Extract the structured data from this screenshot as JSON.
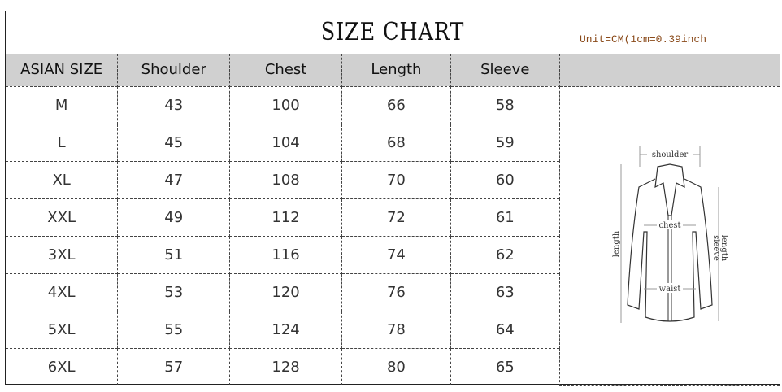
{
  "title": "SIZE CHART",
  "unit": "Unit=CM(1cm=0.39inch",
  "columns": [
    "ASIAN SIZE",
    "Shoulder",
    "Chest",
    "Length",
    "Sleeve",
    ""
  ],
  "rows": [
    [
      "M",
      "43",
      "100",
      "66",
      "58"
    ],
    [
      "L",
      "45",
      "104",
      "68",
      "59"
    ],
    [
      "XL",
      "47",
      "108",
      "70",
      "60"
    ],
    [
      "XXL",
      "49",
      "112",
      "72",
      "61"
    ],
    [
      "3XL",
      "51",
      "116",
      "74",
      "62"
    ],
    [
      "4XL",
      "53",
      "120",
      "76",
      "63"
    ],
    [
      "5XL",
      "55",
      "124",
      "78",
      "64"
    ],
    [
      "6XL",
      "57",
      "128",
      "80",
      "65"
    ]
  ],
  "diagram": {
    "shoulder": "shoulder",
    "chest": "chest",
    "waist": "waist",
    "length": "length",
    "sleeve": "sleeve",
    "sleeve_length": "length"
  },
  "colors": {
    "header_bg": "#d0d0d0",
    "unit_text": "#8a4a1a"
  }
}
